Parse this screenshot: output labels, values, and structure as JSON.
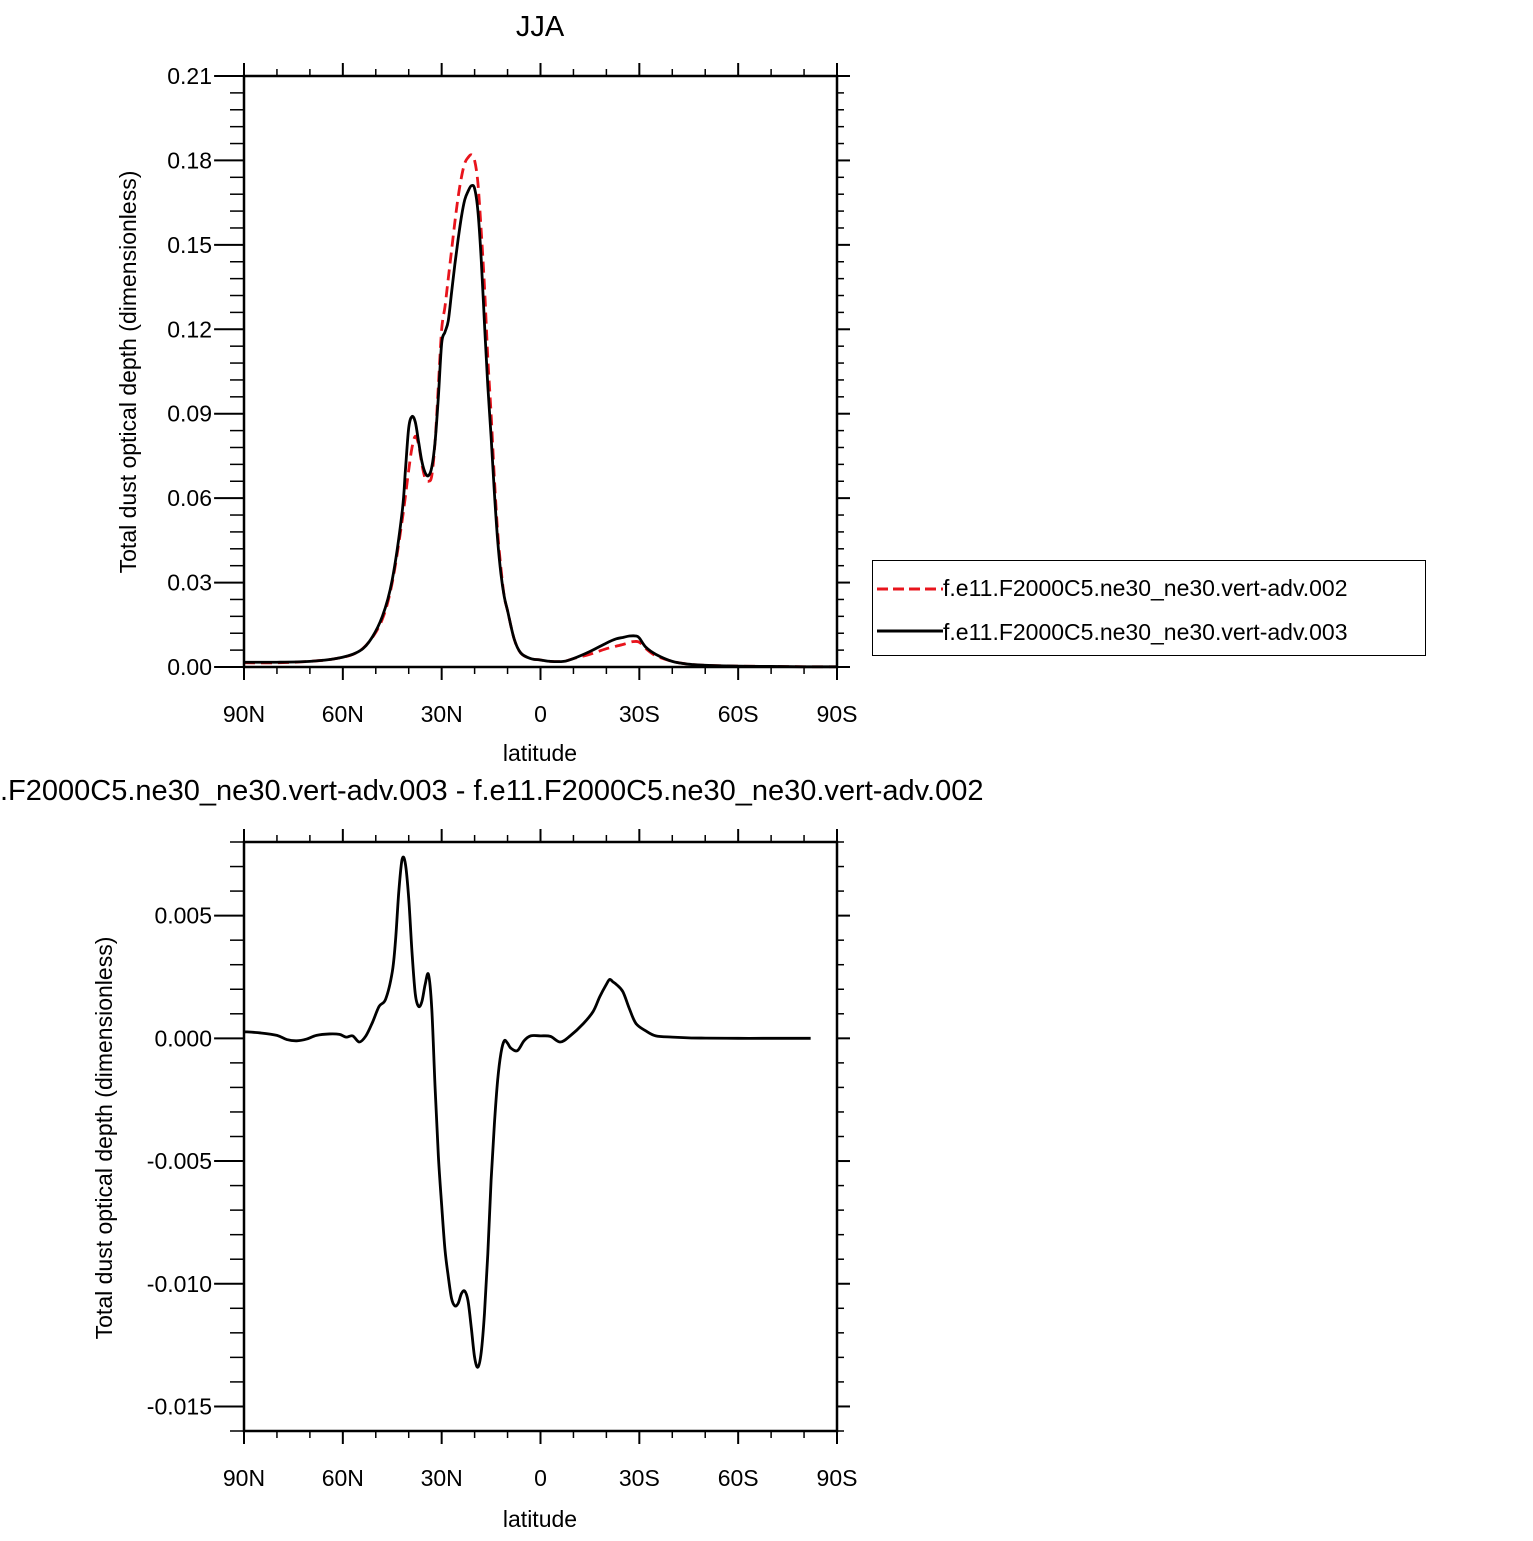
{
  "chart_data": [
    {
      "type": "line",
      "title": "JJA",
      "xlabel": "latitude",
      "ylabel": "Total dust optical depth (dimensionless)",
      "xlim": [
        90,
        -90
      ],
      "ylim": [
        0,
        0.21
      ],
      "x_ticks": [
        {
          "value": 90,
          "label": "90N"
        },
        {
          "value": 60,
          "label": "60N"
        },
        {
          "value": 30,
          "label": "30N"
        },
        {
          "value": 0,
          "label": "0"
        },
        {
          "value": -30,
          "label": "30S"
        },
        {
          "value": -60,
          "label": "60S"
        },
        {
          "value": -90,
          "label": "90S"
        }
      ],
      "y_ticks": [
        {
          "value": 0,
          "label": "0.00"
        },
        {
          "value": 0.03,
          "label": "0.03"
        },
        {
          "value": 0.06,
          "label": "0.06"
        },
        {
          "value": 0.09,
          "label": "0.09"
        },
        {
          "value": 0.12,
          "label": "0.12"
        },
        {
          "value": 0.15,
          "label": "0.15"
        },
        {
          "value": 0.18,
          "label": "0.18"
        },
        {
          "value": 0.21,
          "label": "0.21"
        }
      ],
      "legend_position": "right",
      "series": [
        {
          "name": "f.e11.F2000C5.ne30_ne30.vert-adv.002",
          "color": "#e8141c",
          "style": "dashed",
          "points": [
            [
              90,
              0.0015
            ],
            [
              80,
              0.0015
            ],
            [
              70,
              0.002
            ],
            [
              62,
              0.003
            ],
            [
              56,
              0.005
            ],
            [
              52,
              0.009
            ],
            [
              48,
              0.017
            ],
            [
              45,
              0.03
            ],
            [
              42,
              0.052
            ],
            [
              40,
              0.07
            ],
            [
              39,
              0.078
            ],
            [
              38,
              0.082
            ],
            [
              37,
              0.079
            ],
            [
              36,
              0.072
            ],
            [
              35,
              0.067
            ],
            [
              34,
              0.066
            ],
            [
              33,
              0.068
            ],
            [
              32,
              0.08
            ],
            [
              31,
              0.1
            ],
            [
              30,
              0.12
            ],
            [
              29,
              0.128
            ],
            [
              28,
              0.138
            ],
            [
              27,
              0.148
            ],
            [
              26,
              0.158
            ],
            [
              25,
              0.167
            ],
            [
              24,
              0.174
            ],
            [
              23,
              0.179
            ],
            [
              22,
              0.181
            ],
            [
              21,
              0.182
            ],
            [
              20,
              0.18
            ],
            [
              19,
              0.172
            ],
            [
              18,
              0.155
            ],
            [
              17,
              0.135
            ],
            [
              16,
              0.11
            ],
            [
              15,
              0.09
            ],
            [
              14,
              0.067
            ],
            [
              13,
              0.048
            ],
            [
              12,
              0.035
            ],
            [
              11,
              0.025
            ],
            [
              10,
              0.02
            ],
            [
              8,
              0.01
            ],
            [
              6,
              0.005
            ],
            [
              3,
              0.003
            ],
            [
              0,
              0.0025
            ],
            [
              -3,
              0.002
            ],
            [
              -7,
              0.002
            ],
            [
              -10,
              0.003
            ],
            [
              -15,
              0.0045
            ],
            [
              -20,
              0.0065
            ],
            [
              -25,
              0.008
            ],
            [
              -28,
              0.009
            ],
            [
              -30,
              0.0088
            ],
            [
              -32,
              0.0065
            ],
            [
              -35,
              0.004
            ],
            [
              -40,
              0.002
            ],
            [
              -45,
              0.001
            ],
            [
              -50,
              0.0006
            ],
            [
              -60,
              0.0003
            ],
            [
              -70,
              0.0002
            ],
            [
              -80,
              0.0001
            ],
            [
              -90,
              0.0001
            ]
          ]
        },
        {
          "name": "f.e11.F2000C5.ne30_ne30.vert-adv.003",
          "color": "#000000",
          "style": "solid",
          "points": [
            [
              90,
              0.0017
            ],
            [
              80,
              0.0017
            ],
            [
              70,
              0.002
            ],
            [
              62,
              0.003
            ],
            [
              56,
              0.005
            ],
            [
              52,
              0.009
            ],
            [
              48,
              0.018
            ],
            [
              45,
              0.031
            ],
            [
              42,
              0.055
            ],
            [
              41,
              0.07
            ],
            [
              40,
              0.085
            ],
            [
              39,
              0.089
            ],
            [
              38,
              0.087
            ],
            [
              37,
              0.08
            ],
            [
              36,
              0.073
            ],
            [
              35,
              0.069
            ],
            [
              34,
              0.068
            ],
            [
              33,
              0.071
            ],
            [
              32,
              0.08
            ],
            [
              31,
              0.096
            ],
            [
              30,
              0.115
            ],
            [
              29,
              0.119
            ],
            [
              28,
              0.123
            ],
            [
              27,
              0.133
            ],
            [
              26,
              0.143
            ],
            [
              25,
              0.152
            ],
            [
              24,
              0.16
            ],
            [
              23,
              0.166
            ],
            [
              22,
              0.169
            ],
            [
              21,
              0.171
            ],
            [
              20,
              0.17
            ],
            [
              19,
              0.162
            ],
            [
              18,
              0.145
            ],
            [
              17,
              0.122
            ],
            [
              16,
              0.1
            ],
            [
              15,
              0.082
            ],
            [
              14,
              0.062
            ],
            [
              13,
              0.045
            ],
            [
              12,
              0.033
            ],
            [
              11,
              0.025
            ],
            [
              10,
              0.02
            ],
            [
              8,
              0.01
            ],
            [
              6,
              0.005
            ],
            [
              3,
              0.003
            ],
            [
              0,
              0.0025
            ],
            [
              -3,
              0.002
            ],
            [
              -7,
              0.002
            ],
            [
              -10,
              0.003
            ],
            [
              -15,
              0.0055
            ],
            [
              -20,
              0.0085
            ],
            [
              -23,
              0.01
            ],
            [
              -25,
              0.0105
            ],
            [
              -27,
              0.011
            ],
            [
              -29,
              0.011
            ],
            [
              -30,
              0.0103
            ],
            [
              -32,
              0.007
            ],
            [
              -35,
              0.0045
            ],
            [
              -40,
              0.002
            ],
            [
              -45,
              0.001
            ],
            [
              -50,
              0.0006
            ],
            [
              -60,
              0.0003
            ],
            [
              -70,
              0.0002
            ],
            [
              -80,
              0.0001
            ],
            [
              -90,
              0.0001
            ]
          ]
        }
      ]
    },
    {
      "type": "line",
      "title": ".F2000C5.ne30_ne30.vert-adv.003 - f.e11.F2000C5.ne30_ne30.vert-adv.002",
      "xlabel": "latitude",
      "ylabel": "Total dust optical depth (dimensionless)",
      "xlim": [
        90,
        -90
      ],
      "ylim": [
        -0.016,
        0.008
      ],
      "x_ticks": [
        {
          "value": 90,
          "label": "90N"
        },
        {
          "value": 60,
          "label": "60N"
        },
        {
          "value": 30,
          "label": "30N"
        },
        {
          "value": 0,
          "label": "0"
        },
        {
          "value": -30,
          "label": "30S"
        },
        {
          "value": -60,
          "label": "60S"
        },
        {
          "value": -90,
          "label": "90S"
        }
      ],
      "y_ticks": [
        {
          "value": -0.015,
          "label": "-0.015"
        },
        {
          "value": -0.01,
          "label": "-0.010"
        },
        {
          "value": -0.005,
          "label": "-0.005"
        },
        {
          "value": 0,
          "label": "0.000"
        },
        {
          "value": 0.005,
          "label": "0.005"
        }
      ],
      "series": [
        {
          "color": "#000000",
          "style": "solid",
          "points": [
            [
              90,
              0.00027
            ],
            [
              85,
              0.00022
            ],
            [
              80,
              0.00012
            ],
            [
              77,
              -5e-05
            ],
            [
              74,
              -0.0001
            ],
            [
              71,
              -3e-05
            ],
            [
              68,
              0.00012
            ],
            [
              64,
              0.00018
            ],
            [
              61,
              0.00016
            ],
            [
              59,
              5e-05
            ],
            [
              57,
              0.0001
            ],
            [
              55,
              -0.00015
            ],
            [
              53,
              0.0001
            ],
            [
              51,
              0.00065
            ],
            [
              49,
              0.0013
            ],
            [
              47,
              0.0016
            ],
            [
              45,
              0.0027
            ],
            [
              44,
              0.004
            ],
            [
              43,
              0.006
            ],
            [
              42,
              0.0073
            ],
            [
              41,
              0.0071
            ],
            [
              40,
              0.0057
            ],
            [
              39,
              0.0035
            ],
            [
              38,
              0.0018
            ],
            [
              37,
              0.0013
            ],
            [
              36,
              0.0015
            ],
            [
              35,
              0.0022
            ],
            [
              34,
              0.0026
            ],
            [
              33,
              0.0012
            ],
            [
              32,
              -0.002
            ],
            [
              31,
              -0.0048
            ],
            [
              30,
              -0.0068
            ],
            [
              29,
              -0.0086
            ],
            [
              28,
              -0.0097
            ],
            [
              27,
              -0.0106
            ],
            [
              26,
              -0.0109
            ],
            [
              25,
              -0.0108
            ],
            [
              24,
              -0.0104
            ],
            [
              23,
              -0.0103
            ],
            [
              22,
              -0.0107
            ],
            [
              21,
              -0.0118
            ],
            [
              20,
              -0.013
            ],
            [
              19,
              -0.0134
            ],
            [
              18,
              -0.0128
            ],
            [
              17,
              -0.0112
            ],
            [
              16,
              -0.0088
            ],
            [
              15,
              -0.0058
            ],
            [
              14,
              -0.0035
            ],
            [
              13,
              -0.0017
            ],
            [
              12,
              -0.0006
            ],
            [
              11,
              -0.0001
            ],
            [
              10,
              -0.0002
            ],
            [
              9,
              -0.0004
            ],
            [
              7,
              -0.0005
            ],
            [
              5,
              -0.0001
            ],
            [
              3,
              0.0001
            ],
            [
              0,
              0.0001
            ],
            [
              -3,
              8e-05
            ],
            [
              -6,
              -0.00015
            ],
            [
              -9,
              0.0001
            ],
            [
              -13,
              0.0006
            ],
            [
              -16,
              0.0011
            ],
            [
              -18,
              0.0017
            ],
            [
              -20,
              0.0022
            ],
            [
              -21,
              0.0024
            ],
            [
              -22,
              0.0023
            ],
            [
              -23,
              0.0022
            ],
            [
              -25,
              0.0019
            ],
            [
              -27,
              0.0012
            ],
            [
              -29,
              0.0006
            ],
            [
              -32,
              0.0003
            ],
            [
              -35,
              0.0001
            ],
            [
              -40,
              5e-05
            ],
            [
              -45,
              2e-05
            ],
            [
              -50,
              1e-05
            ],
            [
              -60,
              0.0
            ],
            [
              -70,
              0.0
            ],
            [
              -82,
              0.0
            ]
          ]
        }
      ]
    }
  ]
}
